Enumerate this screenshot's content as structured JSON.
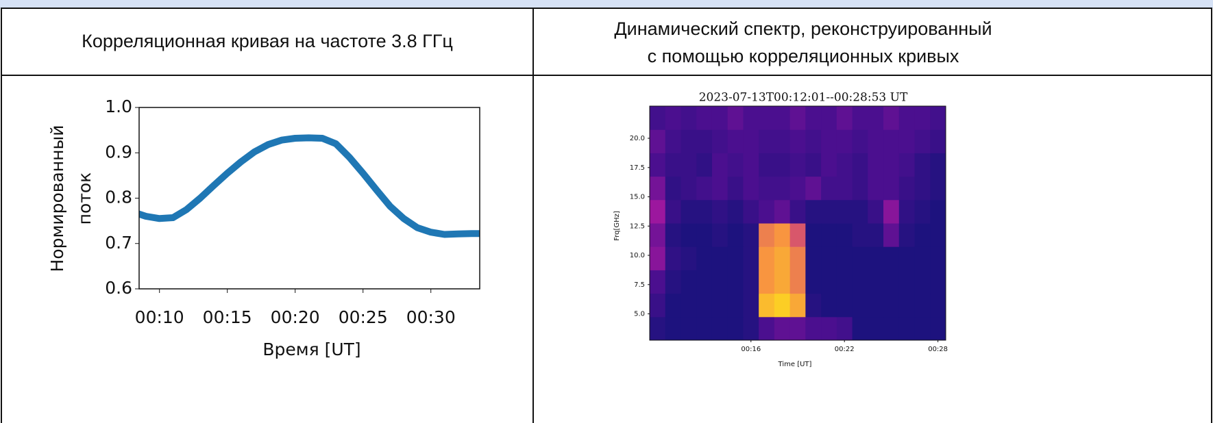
{
  "table": {
    "headers": [
      [
        "Корреляционная кривая на частоте 3.8 ГГц"
      ],
      [
        "Динамический спектр, реконструированный",
        "с помощью корреляционных кривых"
      ]
    ]
  },
  "chart_data": [
    {
      "type": "line",
      "color": "#1f77b4",
      "xlabel": "Время [UT]",
      "ylabel": [
        "Нормированный",
        "поток"
      ],
      "x": [
        8.5,
        9,
        10,
        11,
        12,
        13,
        14,
        15,
        16,
        17,
        18,
        19,
        20,
        21,
        22,
        23,
        24,
        25,
        26,
        27,
        28,
        29,
        30,
        31,
        32,
        33,
        33.6
      ],
      "values": [
        0.765,
        0.76,
        0.755,
        0.757,
        0.775,
        0.8,
        0.828,
        0.855,
        0.88,
        0.902,
        0.918,
        0.928,
        0.932,
        0.933,
        0.932,
        0.92,
        0.89,
        0.855,
        0.818,
        0.782,
        0.755,
        0.735,
        0.725,
        0.72,
        0.721,
        0.722,
        0.722
      ],
      "xlim": [
        8.5,
        33.6
      ],
      "ylim": [
        0.6,
        1.0
      ],
      "xticks": [
        {
          "value": 10,
          "label": "00:10"
        },
        {
          "value": 15,
          "label": "00:15"
        },
        {
          "value": 20,
          "label": "00:20"
        },
        {
          "value": 25,
          "label": "00:25"
        },
        {
          "value": 30,
          "label": "00:30"
        }
      ],
      "yticks": [
        0.6,
        0.7,
        0.8,
        0.9,
        {
          "value": 1,
          "label": "1.0"
        }
      ]
    },
    {
      "type": "heatmap",
      "title": "2023-07-13T00:12:01--00:28:53 UT",
      "xlabel": "Time [UT]",
      "ylabel": "Frq[GHz]",
      "colormap": "plasma",
      "x": [
        10,
        11,
        12,
        13,
        14,
        15,
        16,
        17,
        18,
        19,
        20,
        21,
        22,
        23,
        24,
        25,
        26,
        27,
        28
      ],
      "y": [
        3.75,
        5.75,
        7.75,
        9.75,
        11.75,
        13.75,
        15.75,
        17.75,
        19.75,
        21.75
      ],
      "z": [
        [
          0.1,
          0.05,
          0.05,
          0.05,
          0.05,
          0.05,
          0.1,
          0.3,
          0.35,
          0.35,
          0.3,
          0.3,
          0.25,
          0.05,
          0.05,
          0.05,
          0.05,
          0.05,
          0.05
        ],
        [
          0.2,
          0.05,
          0.05,
          0.05,
          0.05,
          0.05,
          0.1,
          0.95,
          1.0,
          0.9,
          0.1,
          0.05,
          0.05,
          0.05,
          0.05,
          0.05,
          0.05,
          0.05,
          0.05
        ],
        [
          0.3,
          0.1,
          0.05,
          0.05,
          0.05,
          0.05,
          0.1,
          0.85,
          0.9,
          0.8,
          0.05,
          0.05,
          0.05,
          0.05,
          0.05,
          0.05,
          0.05,
          0.05,
          0.05
        ],
        [
          0.45,
          0.15,
          0.1,
          0.05,
          0.05,
          0.05,
          0.1,
          0.85,
          0.9,
          0.8,
          0.05,
          0.05,
          0.05,
          0.05,
          0.05,
          0.05,
          0.05,
          0.05,
          0.05
        ],
        [
          0.4,
          0.1,
          0.05,
          0.05,
          0.1,
          0.05,
          0.1,
          0.8,
          0.85,
          0.7,
          0.05,
          0.05,
          0.05,
          0.1,
          0.1,
          0.35,
          0.1,
          0.05,
          0.05
        ],
        [
          0.5,
          0.2,
          0.1,
          0.1,
          0.15,
          0.1,
          0.2,
          0.3,
          0.35,
          0.2,
          0.1,
          0.1,
          0.1,
          0.1,
          0.2,
          0.45,
          0.15,
          0.1,
          0.05
        ],
        [
          0.4,
          0.15,
          0.2,
          0.25,
          0.3,
          0.2,
          0.3,
          0.25,
          0.25,
          0.3,
          0.35,
          0.25,
          0.25,
          0.2,
          0.3,
          0.3,
          0.2,
          0.15,
          0.1
        ],
        [
          0.3,
          0.2,
          0.2,
          0.15,
          0.3,
          0.25,
          0.3,
          0.2,
          0.2,
          0.25,
          0.2,
          0.3,
          0.25,
          0.2,
          0.3,
          0.3,
          0.25,
          0.15,
          0.1
        ],
        [
          0.35,
          0.25,
          0.2,
          0.2,
          0.25,
          0.3,
          0.3,
          0.25,
          0.25,
          0.3,
          0.25,
          0.3,
          0.3,
          0.25,
          0.3,
          0.3,
          0.3,
          0.25,
          0.2
        ],
        [
          0.25,
          0.3,
          0.25,
          0.3,
          0.3,
          0.35,
          0.3,
          0.3,
          0.3,
          0.35,
          0.3,
          0.3,
          0.35,
          0.3,
          0.3,
          0.35,
          0.3,
          0.3,
          0.25
        ]
      ],
      "xlim": [
        9.5,
        28.5
      ],
      "ylim": [
        2.75,
        22.75
      ],
      "xticks": [
        {
          "value": 16,
          "label": "00:16"
        },
        {
          "value": 22,
          "label": "00:22"
        },
        {
          "value": 28,
          "label": "00:28"
        }
      ],
      "yticks": [
        {
          "value": 5,
          "label": "5.0"
        },
        7.5,
        {
          "value": 10,
          "label": "10.0"
        },
        12.5,
        {
          "value": 15,
          "label": "15.0"
        },
        17.5,
        {
          "value": 20,
          "label": "20.0"
        }
      ]
    }
  ]
}
